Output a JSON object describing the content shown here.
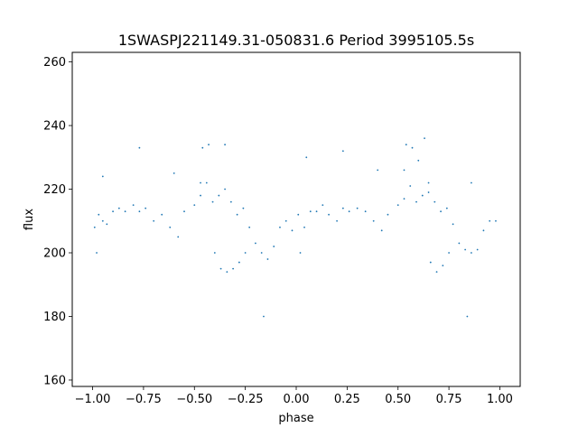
{
  "chart_data": {
    "type": "scatter",
    "title": "1SWASPJ221149.31-050831.6 Period 3995105.5s",
    "xlabel": "phase",
    "ylabel": "flux",
    "xlim": [
      -1.1,
      1.1
    ],
    "ylim": [
      158,
      263
    ],
    "x_ticks": [
      -1.0,
      -0.75,
      -0.5,
      -0.25,
      0.0,
      0.25,
      0.5,
      0.75,
      1.0
    ],
    "x_tick_labels": [
      "−1.00",
      "−0.75",
      "−0.50",
      "−0.25",
      "0.00",
      "0.25",
      "0.50",
      "0.75",
      "1.00"
    ],
    "y_ticks": [
      160,
      180,
      200,
      220,
      240,
      260
    ],
    "y_tick_labels": [
      "160",
      "180",
      "200",
      "220",
      "240",
      "260"
    ],
    "grid": false,
    "point_color": "#1f77b4",
    "series": [
      {
        "x": [
          -0.99,
          -0.97,
          -0.95,
          -0.93,
          -0.9,
          -0.87,
          -0.84,
          -0.8,
          -0.77,
          -0.74,
          -0.7,
          -0.66,
          -0.62,
          -0.58,
          -0.55,
          -0.5,
          -0.47,
          -0.44,
          -0.41,
          -0.38,
          -0.35,
          -0.32,
          -0.29,
          -0.26,
          -0.23,
          -0.2,
          -0.17,
          -0.14,
          -0.11,
          -0.08,
          -0.05,
          -0.02,
          0.01,
          0.04,
          0.07,
          0.1,
          0.13,
          0.16,
          0.2,
          0.23,
          0.26,
          0.3,
          0.34,
          0.38,
          0.42,
          0.45,
          0.5,
          0.53,
          0.56,
          0.59,
          0.62,
          0.65,
          0.68,
          0.71,
          0.74,
          0.77,
          0.8,
          0.83,
          0.86,
          0.89,
          0.92,
          0.95,
          0.98,
          -0.46,
          -0.43,
          -0.4,
          -0.37,
          -0.34,
          -0.31,
          -0.28,
          -0.25,
          0.54,
          0.57,
          0.6,
          0.63,
          0.66,
          0.69,
          0.72,
          0.75,
          -0.95,
          -0.77,
          -0.6,
          -0.47,
          -0.35,
          0.05,
          0.23,
          0.4,
          0.53,
          0.65,
          0.86,
          -0.16,
          0.84,
          -0.98,
          0.02
        ],
        "y": [
          208,
          212,
          210,
          209,
          213,
          214,
          213,
          215,
          213,
          214,
          210,
          212,
          208,
          205,
          213,
          215,
          218,
          222,
          216,
          218,
          220,
          216,
          212,
          214,
          208,
          203,
          200,
          198,
          202,
          208,
          210,
          207,
          212,
          208,
          213,
          213,
          215,
          212,
          210,
          214,
          213,
          214,
          213,
          210,
          207,
          212,
          215,
          217,
          221,
          216,
          218,
          219,
          216,
          213,
          214,
          209,
          203,
          201,
          200,
          201,
          207,
          210,
          210,
          233,
          234,
          200,
          195,
          194,
          195,
          197,
          200,
          234,
          233,
          229,
          236,
          197,
          194,
          196,
          200,
          224,
          233,
          225,
          222,
          234,
          230,
          232,
          226,
          226,
          222,
          222,
          180,
          180,
          200,
          200
        ]
      }
    ]
  }
}
